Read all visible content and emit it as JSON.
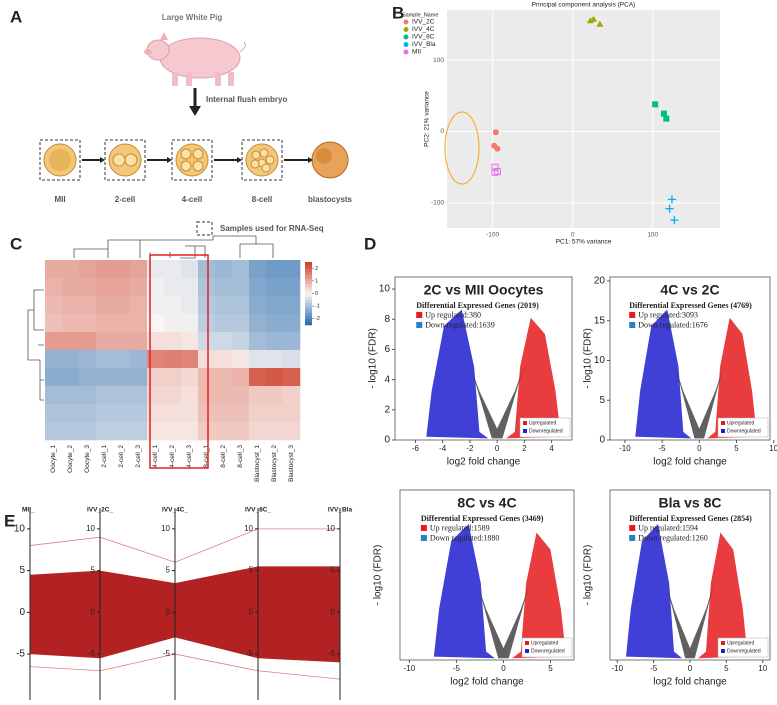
{
  "panel_labels": [
    "A",
    "B",
    "C",
    "D",
    "E"
  ],
  "diagram": {
    "species": "Large White Pig",
    "step": "Internal flush embryo",
    "stages": [
      "MII",
      "2-cell",
      "4-cell",
      "8-cell",
      "blastocysts"
    ],
    "legend": "Samples used for RNA-Seq"
  },
  "chart_data": [
    {
      "type": "scatter",
      "title": "Principal component analysis (PCA)",
      "x_label": "PC1: 57% variance",
      "y_label": "PC2: 21% variance",
      "legend_title": "Sample_Name",
      "xlim": [
        -157,
        184
      ],
      "xticks": [
        -100,
        0,
        100
      ],
      "ylim": [
        -135,
        170
      ],
      "yticks": [
        -100,
        0,
        100
      ],
      "grid": true,
      "series": [
        {
          "name": "IVV_2C",
          "color": "#f8766d",
          "marker": "circle",
          "x": [
            -96,
            -98,
            -94
          ],
          "values": [
            -1,
            -20,
            -24
          ]
        },
        {
          "name": "IVV_4C",
          "color": "#a3a500",
          "marker": "triangle",
          "x": [
            22,
            26,
            34
          ],
          "values": [
            155,
            157,
            150
          ]
        },
        {
          "name": "IVV_8C",
          "color": "#00bf7d",
          "marker": "square",
          "x": [
            103,
            114,
            117
          ],
          "values": [
            38,
            25,
            18
          ]
        },
        {
          "name": "IVV_Bla",
          "color": "#00b0f6",
          "marker": "cross",
          "x": [
            124,
            121,
            127
          ],
          "values": [
            -95,
            -108,
            -124
          ]
        },
        {
          "name": "MII",
          "color": "#e76bf3",
          "marker": "open-square",
          "x": [
            -97,
            -94,
            -97
          ],
          "values": [
            -50,
            -56,
            -57
          ]
        }
      ]
    },
    {
      "type": "heatmap",
      "columns": [
        "Oocyte_1",
        "Oocyte_2",
        "Oocyte_3",
        "2-cell_1",
        "2-cell_2",
        "2-cell_3",
        "4-cell_1",
        "4-cell_2",
        "4-cell_3",
        "8-cell_1",
        "8-cell_2",
        "8-cell_3",
        "Blastocyst_1",
        "Blastocyst_2",
        "Blastocyst_3"
      ],
      "clim": [
        -2.5,
        2.5
      ],
      "cticks": [
        -2,
        -1,
        0,
        1,
        2
      ],
      "values": [
        [
          1.0,
          1.0,
          1.1,
          1.2,
          1.2,
          1.1,
          -0.2,
          -0.2,
          -0.3,
          -1.0,
          -1.1,
          -1.0,
          -1.5,
          -1.6,
          -1.6
        ],
        [
          0.9,
          1.0,
          1.0,
          1.1,
          1.1,
          1.0,
          -0.1,
          -0.2,
          -0.2,
          -0.9,
          -1.0,
          -1.0,
          -1.4,
          -1.5,
          -1.5
        ],
        [
          0.8,
          0.9,
          0.9,
          1.0,
          1.0,
          0.9,
          -0.1,
          -0.1,
          -0.2,
          -0.8,
          -0.9,
          -0.9,
          -1.3,
          -1.4,
          -1.4
        ],
        [
          0.7,
          0.8,
          0.8,
          0.9,
          0.9,
          0.9,
          0.0,
          -0.1,
          -0.1,
          -0.7,
          -0.8,
          -0.8,
          -1.2,
          -1.3,
          -1.3
        ],
        [
          1.2,
          1.2,
          1.2,
          1.0,
          1.0,
          1.0,
          0.3,
          0.3,
          0.2,
          -0.5,
          -0.5,
          -0.6,
          -1.0,
          -1.1,
          -1.1
        ],
        [
          -1.2,
          -1.2,
          -1.1,
          -1.0,
          -1.0,
          -1.1,
          1.5,
          1.6,
          1.5,
          0.3,
          0.3,
          0.2,
          -0.3,
          -0.3,
          -0.4
        ],
        [
          -1.3,
          -1.3,
          -1.2,
          -1.2,
          -1.2,
          -1.2,
          0.5,
          0.5,
          0.4,
          0.8,
          0.8,
          0.9,
          2.0,
          2.1,
          2.0
        ],
        [
          -1.0,
          -1.0,
          -1.0,
          -0.9,
          -0.9,
          -0.9,
          0.4,
          0.4,
          0.3,
          0.8,
          0.8,
          0.8,
          0.6,
          0.6,
          0.5
        ],
        [
          -0.9,
          -0.9,
          -0.9,
          -0.8,
          -0.8,
          -0.8,
          0.3,
          0.3,
          0.3,
          0.7,
          0.7,
          0.7,
          0.5,
          0.5,
          0.5
        ],
        [
          -0.8,
          -0.8,
          -0.8,
          -0.7,
          -0.7,
          -0.7,
          0.2,
          0.2,
          0.2,
          0.6,
          0.6,
          0.6,
          0.4,
          0.4,
          0.4
        ]
      ]
    },
    {
      "type": "volcano",
      "title": "2C vs MII Oocytes",
      "subtitle": "Differential Expressed Genes (2019)",
      "up": "Up regulated:380",
      "down": "Down regulated:1639",
      "legend": [
        "Upregulated",
        "Downregulated"
      ],
      "colors": [
        "#e41a1c",
        "#1f1fd0",
        "#444444"
      ],
      "x_label": "log2 fold change",
      "y_label": "- log10 (FDR)",
      "xlim": [
        -7.5,
        5.5
      ],
      "xticks": [
        -6,
        -4,
        -2,
        0,
        2,
        4
      ],
      "ylim": [
        0,
        10.8
      ],
      "yticks": [
        0,
        2,
        4,
        6,
        8,
        10
      ]
    },
    {
      "type": "volcano",
      "title": "4C vs 2C",
      "subtitle": "Differential Expressed Genes (4769)",
      "up": "Up regulated:3093",
      "down": "Down regulated:1676",
      "legend": [
        "Upregulated",
        "Downregulated"
      ],
      "colors": [
        "#e41a1c",
        "#1f1fd0",
        "#444444"
      ],
      "x_label": "log2 fold change",
      "y_label": "- log10 (FDR)",
      "xlim": [
        -12,
        9.5
      ],
      "xticks": [
        -10,
        -5,
        0,
        5,
        10
      ],
      "ylim": [
        0,
        20.5
      ],
      "yticks": [
        0,
        5,
        10,
        15,
        20
      ]
    },
    {
      "type": "volcano",
      "title": "8C vs 4C",
      "subtitle": "Differential Expressed Genes (3469)",
      "up": "Up regulated:1589",
      "down": "Down regulated:1880",
      "legend": [
        "Upregulated",
        "Downregulated"
      ],
      "colors": [
        "#e41a1c",
        "#1f1fd0",
        "#444444"
      ],
      "x_label": "log2 fold change",
      "y_label": "- log10 (FDR)",
      "xlim": [
        -11,
        7.5
      ],
      "xticks": [
        -10,
        -5,
        0,
        5
      ],
      "yticks": []
    },
    {
      "type": "volcano",
      "title": "Bla vs 8C",
      "subtitle": "Differential Expressed Genes (2854)",
      "up": "Up regulated:1594",
      "down": "Down regulated:1260",
      "legend": [
        "Upregulated",
        "Downregulated"
      ],
      "colors": [
        "#e41a1c",
        "#1f1fd0",
        "#444444"
      ],
      "x_label": "log2 fold change",
      "y_label": "- log10 (FDR)",
      "xlim": [
        -11,
        11
      ],
      "xticks": [
        -10,
        -5,
        0,
        5,
        10
      ],
      "yticks": []
    },
    {
      "type": "parallel",
      "axes": [
        "MII_",
        "IVV_2C_",
        "IVV_4C_",
        "IVV_8C_",
        "IVV_Bla"
      ],
      "color": "#b22222",
      "ylim": [
        -10.5,
        12.5
      ],
      "yticks": [
        -5,
        0,
        5,
        10
      ],
      "upper": [
        4.5,
        5,
        3.5,
        5.5,
        5.5
      ],
      "lower": [
        -5,
        -5.5,
        -3,
        -5.5,
        -6
      ],
      "max": [
        8,
        9,
        6,
        10,
        10
      ],
      "min": [
        -6.5,
        -7,
        -5,
        -7,
        -8
      ]
    }
  ]
}
